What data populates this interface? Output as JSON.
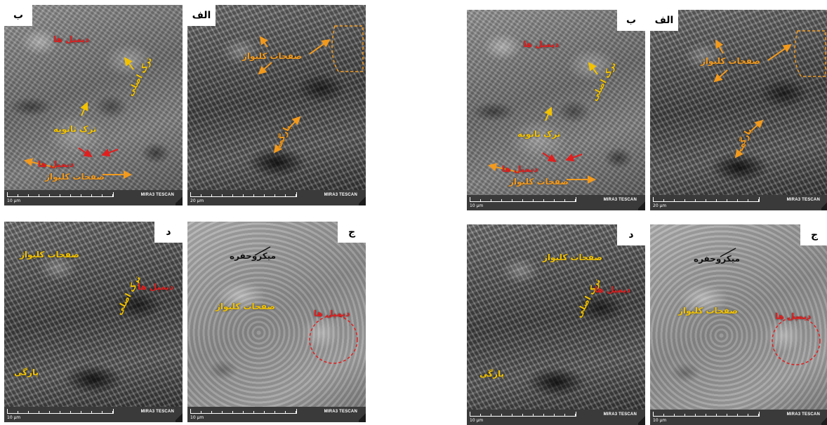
{
  "colors": {
    "yellow": "#f2c200",
    "orange": "#f29a1e",
    "red": "#e01f1f",
    "black": "#111111"
  },
  "panels": {
    "a": {
      "letter": "الف",
      "scale": "20 µm",
      "brand": "MIRA3 TESCAN",
      "label_plates": "صفحات کلیواژ",
      "label_tear": "پارگی"
    },
    "b": {
      "letter": "ب",
      "scale": "10 µm",
      "brand": "MIRA3 TESCAN",
      "label_dimples_top": "دیمپل ها",
      "label_main_crack": "ترک اصلی",
      "label_secondary_crack": "ترک ثانویه",
      "label_dimples_bottom": "دیمپل ها",
      "label_plates": "صفحات کلیواژ"
    },
    "c": {
      "letter": "ج",
      "scale": "10 µm",
      "brand": "MIRA3 TESCAN",
      "label_microvoid": "میکروحفره",
      "label_plates": "صفحات کلیواژ",
      "label_dimples": "دیمپل ها"
    },
    "d": {
      "letter": "د",
      "scale": "10 µm",
      "brand": "MIRA3 TESCAN",
      "label_plates": "صفحات کلیواژ",
      "label_main_crack": "ترک اصلی",
      "label_dimples": "دیمپل ها",
      "label_tear": "پارگی"
    }
  }
}
